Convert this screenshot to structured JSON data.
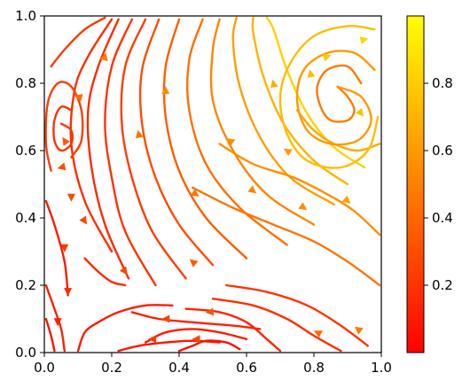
{
  "chart_data": {
    "type": "streamplot",
    "title": "",
    "xlabel": "",
    "ylabel": "",
    "xlim": [
      0,
      1
    ],
    "ylim": [
      0,
      1
    ],
    "x_ticks": [
      "0.0",
      "0.2",
      "0.4",
      "0.6",
      "0.8",
      "1.0"
    ],
    "y_ticks": [
      "0.0",
      "0.2",
      "0.4",
      "0.6",
      "0.8",
      "1.0"
    ],
    "grid": false,
    "colormap": "autumn",
    "colormap_stops": [
      "#ff0000",
      "#ff8000",
      "#ffff00"
    ],
    "colorbar": {
      "range": [
        0,
        1
      ],
      "ticks": [
        "0.2",
        "0.4",
        "0.6",
        "0.8"
      ]
    },
    "features": {
      "vortices": [
        {
          "x": 0.05,
          "y": 0.68,
          "label": "small vortex near left edge"
        },
        {
          "x": 0.87,
          "y": 0.79,
          "label": "vortex upper right"
        }
      ],
      "max_magnitude_region": {
        "x": 0.72,
        "y": 0.72
      }
    },
    "streamlines": [
      {
        "color_value": 0.22,
        "points": [
          [
            0.02,
            0.85
          ],
          [
            0.06,
            0.9
          ],
          [
            0.12,
            0.96
          ],
          [
            0.18,
            0.995
          ]
        ]
      },
      {
        "color_value": 0.18,
        "points": [
          [
            0.2,
            0.3
          ],
          [
            0.12,
            0.45
          ],
          [
            0.08,
            0.62
          ],
          [
            0.09,
            0.78
          ],
          [
            0.13,
            0.88
          ],
          [
            0.2,
            0.99
          ]
        ]
      },
      {
        "color_value": 0.16,
        "points": [
          [
            0.25,
            0.22
          ],
          [
            0.18,
            0.38
          ],
          [
            0.14,
            0.55
          ],
          [
            0.13,
            0.72
          ],
          [
            0.16,
            0.85
          ],
          [
            0.22,
            0.99
          ]
        ]
      },
      {
        "color_value": 0.2,
        "points": [
          [
            0.33,
            0.2
          ],
          [
            0.24,
            0.36
          ],
          [
            0.2,
            0.52
          ],
          [
            0.18,
            0.68
          ],
          [
            0.2,
            0.85
          ],
          [
            0.26,
            0.99
          ]
        ]
      },
      {
        "color_value": 0.24,
        "points": [
          [
            0.42,
            0.22
          ],
          [
            0.32,
            0.36
          ],
          [
            0.26,
            0.52
          ],
          [
            0.23,
            0.68
          ],
          [
            0.24,
            0.85
          ],
          [
            0.3,
            0.99
          ]
        ]
      },
      {
        "color_value": 0.3,
        "points": [
          [
            0.5,
            0.26
          ],
          [
            0.4,
            0.38
          ],
          [
            0.33,
            0.52
          ],
          [
            0.29,
            0.68
          ],
          [
            0.29,
            0.84
          ],
          [
            0.34,
            0.99
          ]
        ]
      },
      {
        "color_value": 0.36,
        "points": [
          [
            0.6,
            0.28
          ],
          [
            0.48,
            0.4
          ],
          [
            0.4,
            0.54
          ],
          [
            0.36,
            0.7
          ],
          [
            0.36,
            0.85
          ],
          [
            0.4,
            0.99
          ]
        ]
      },
      {
        "color_value": 0.44,
        "points": [
          [
            0.72,
            0.32
          ],
          [
            0.58,
            0.43
          ],
          [
            0.48,
            0.56
          ],
          [
            0.43,
            0.72
          ],
          [
            0.43,
            0.87
          ],
          [
            0.47,
            0.99
          ]
        ]
      },
      {
        "color_value": 0.52,
        "points": [
          [
            0.8,
            0.38
          ],
          [
            0.66,
            0.47
          ],
          [
            0.56,
            0.6
          ],
          [
            0.5,
            0.75
          ],
          [
            0.5,
            0.9
          ],
          [
            0.52,
            0.99
          ]
        ]
      },
      {
        "color_value": 0.62,
        "points": [
          [
            0.86,
            0.44
          ],
          [
            0.73,
            0.52
          ],
          [
            0.64,
            0.64
          ],
          [
            0.58,
            0.79
          ],
          [
            0.56,
            0.93
          ],
          [
            0.57,
            0.995
          ]
        ]
      },
      {
        "color_value": 0.7,
        "points": [
          [
            0.9,
            0.5
          ],
          [
            0.8,
            0.57
          ],
          [
            0.71,
            0.68
          ],
          [
            0.65,
            0.82
          ],
          [
            0.62,
            0.95
          ],
          [
            0.62,
            0.995
          ]
        ]
      },
      {
        "color_value": 0.82,
        "points": [
          [
            0.95,
            0.55
          ],
          [
            0.86,
            0.61
          ],
          [
            0.78,
            0.71
          ],
          [
            0.72,
            0.84
          ],
          [
            0.68,
            0.96
          ],
          [
            0.66,
            0.995
          ]
        ]
      },
      {
        "color_value": 0.56,
        "points": [
          [
            0.995,
            0.35
          ],
          [
            0.92,
            0.42
          ],
          [
            0.84,
            0.47
          ],
          [
            0.74,
            0.52
          ],
          [
            0.62,
            0.56
          ],
          [
            0.52,
            0.62
          ]
        ]
      },
      {
        "color_value": 0.46,
        "points": [
          [
            0.995,
            0.2
          ],
          [
            0.9,
            0.27
          ],
          [
            0.8,
            0.33
          ],
          [
            0.68,
            0.38
          ],
          [
            0.56,
            0.43
          ],
          [
            0.44,
            0.49
          ]
        ]
      },
      {
        "color_value": 0.66,
        "points": [
          [
            0.995,
            0.62
          ],
          [
            0.93,
            0.6
          ],
          [
            0.86,
            0.62
          ],
          [
            0.8,
            0.66
          ],
          [
            0.75,
            0.72
          ]
        ]
      },
      {
        "color_value": 0.48,
        "points": [
          [
            0.87,
            0.79
          ],
          [
            0.9,
            0.76
          ],
          [
            0.92,
            0.72
          ],
          [
            0.9,
            0.69
          ],
          [
            0.85,
            0.69
          ],
          [
            0.82,
            0.73
          ],
          [
            0.81,
            0.79
          ],
          [
            0.84,
            0.84
          ],
          [
            0.9,
            0.85
          ],
          [
            0.94,
            0.8
          ]
        ]
      },
      {
        "color_value": 0.6,
        "points": [
          [
            0.87,
            0.79
          ],
          [
            0.94,
            0.76
          ],
          [
            0.97,
            0.69
          ],
          [
            0.93,
            0.63
          ],
          [
            0.85,
            0.62
          ],
          [
            0.78,
            0.66
          ],
          [
            0.75,
            0.75
          ],
          [
            0.77,
            0.84
          ],
          [
            0.84,
            0.89
          ],
          [
            0.92,
            0.89
          ],
          [
            0.98,
            0.84
          ]
        ]
      },
      {
        "color_value": 0.74,
        "points": [
          [
            0.99,
            0.7
          ],
          [
            0.96,
            0.6
          ],
          [
            0.88,
            0.55
          ],
          [
            0.78,
            0.57
          ],
          [
            0.72,
            0.65
          ],
          [
            0.7,
            0.76
          ],
          [
            0.73,
            0.86
          ],
          [
            0.8,
            0.94
          ],
          [
            0.9,
            0.97
          ],
          [
            0.98,
            0.96
          ]
        ]
      },
      {
        "color_value": 0.2,
        "points": [
          [
            0.05,
            0.68
          ],
          [
            0.08,
            0.66
          ],
          [
            0.08,
            0.62
          ],
          [
            0.05,
            0.6
          ],
          [
            0.03,
            0.63
          ],
          [
            0.03,
            0.69
          ],
          [
            0.05,
            0.73
          ],
          [
            0.08,
            0.72
          ]
        ]
      },
      {
        "color_value": 0.24,
        "points": [
          [
            0.08,
            0.58
          ],
          [
            0.11,
            0.63
          ],
          [
            0.11,
            0.72
          ],
          [
            0.08,
            0.79
          ],
          [
            0.04,
            0.8
          ],
          [
            0.01,
            0.74
          ],
          [
            0.005,
            0.62
          ],
          [
            0.02,
            0.54
          ]
        ]
      },
      {
        "color_value": 0.1,
        "points": [
          [
            0.005,
            0.45
          ],
          [
            0.03,
            0.38
          ],
          [
            0.06,
            0.27
          ],
          [
            0.07,
            0.17
          ]
        ]
      },
      {
        "color_value": 0.12,
        "points": [
          [
            0.005,
            0.2
          ],
          [
            0.03,
            0.13
          ],
          [
            0.05,
            0.07
          ],
          [
            0.06,
            0.005
          ]
        ]
      },
      {
        "color_value": 0.08,
        "points": [
          [
            0.005,
            0.1
          ],
          [
            0.02,
            0.05
          ],
          [
            0.03,
            0.005
          ]
        ]
      },
      {
        "color_value": 0.14,
        "points": [
          [
            0.12,
            0.28
          ],
          [
            0.16,
            0.24
          ],
          [
            0.2,
            0.21
          ],
          [
            0.24,
            0.2
          ]
        ]
      },
      {
        "color_value": 0.1,
        "points": [
          [
            0.1,
            0.005
          ],
          [
            0.12,
            0.06
          ],
          [
            0.16,
            0.09
          ],
          [
            0.22,
            0.12
          ],
          [
            0.3,
            0.14
          ],
          [
            0.38,
            0.14
          ]
        ]
      },
      {
        "color_value": 0.12,
        "points": [
          [
            0.26,
            0.12
          ],
          [
            0.34,
            0.1
          ],
          [
            0.44,
            0.09
          ],
          [
            0.56,
            0.08
          ],
          [
            0.64,
            0.07
          ]
        ]
      },
      {
        "color_value": 0.1,
        "points": [
          [
            0.3,
            0.03
          ],
          [
            0.36,
            0.06
          ],
          [
            0.44,
            0.07
          ],
          [
            0.52,
            0.06
          ],
          [
            0.6,
            0.04
          ]
        ]
      },
      {
        "color_value": 0.08,
        "points": [
          [
            0.22,
            0.005
          ],
          [
            0.28,
            0.02
          ],
          [
            0.36,
            0.03
          ],
          [
            0.44,
            0.035
          ],
          [
            0.52,
            0.03
          ]
        ]
      },
      {
        "color_value": 0.06,
        "points": [
          [
            0.4,
            0.005
          ],
          [
            0.44,
            0.02
          ],
          [
            0.48,
            0.035
          ],
          [
            0.54,
            0.03
          ],
          [
            0.58,
            0.01
          ]
        ]
      },
      {
        "color_value": 0.14,
        "points": [
          [
            0.7,
            0.005
          ],
          [
            0.66,
            0.04
          ],
          [
            0.6,
            0.09
          ],
          [
            0.52,
            0.12
          ],
          [
            0.42,
            0.13
          ]
        ]
      },
      {
        "color_value": 0.18,
        "points": [
          [
            0.88,
            0.005
          ],
          [
            0.8,
            0.05
          ],
          [
            0.72,
            0.1
          ],
          [
            0.62,
            0.14
          ],
          [
            0.5,
            0.16
          ]
        ]
      },
      {
        "color_value": 0.2,
        "points": [
          [
            0.96,
            0.02
          ],
          [
            0.88,
            0.08
          ],
          [
            0.78,
            0.14
          ],
          [
            0.66,
            0.18
          ],
          [
            0.54,
            0.2
          ]
        ]
      }
    ],
    "arrows": [
      {
        "x": 0.18,
        "y": 0.88,
        "dx": 0.02,
        "dy": 0.08
      },
      {
        "x": 0.28,
        "y": 0.65,
        "dx": -0.02,
        "dy": 0.1
      },
      {
        "x": 0.36,
        "y": 0.78,
        "dx": 0.0,
        "dy": 0.1
      },
      {
        "x": 0.45,
        "y": 0.47,
        "dx": 0.06,
        "dy": -0.04
      },
      {
        "x": 0.62,
        "y": 0.48,
        "dx": 0.06,
        "dy": -0.05
      },
      {
        "x": 0.77,
        "y": 0.43,
        "dx": 0.07,
        "dy": -0.05
      },
      {
        "x": 0.9,
        "y": 0.45,
        "dx": 0.06,
        "dy": -0.05
      },
      {
        "x": 0.55,
        "y": 0.63,
        "dx": -0.07,
        "dy": 0.05
      },
      {
        "x": 0.72,
        "y": 0.6,
        "dx": -0.08,
        "dy": 0.05
      },
      {
        "x": 0.68,
        "y": 0.8,
        "dx": -0.02,
        "dy": 0.1
      },
      {
        "x": 0.79,
        "y": 0.83,
        "dx": -0.02,
        "dy": 0.1
      },
      {
        "x": 0.84,
        "y": 0.88,
        "dx": 0.08,
        "dy": 0.03
      },
      {
        "x": 0.94,
        "y": 0.71,
        "dx": 0.04,
        "dy": -0.05
      },
      {
        "x": 0.95,
        "y": 0.93,
        "dx": 0.08,
        "dy": 0.02
      },
      {
        "x": 0.06,
        "y": 0.63,
        "dx": -0.04,
        "dy": 0.06
      },
      {
        "x": 0.1,
        "y": 0.76,
        "dx": -0.07,
        "dy": 0.02
      },
      {
        "x": 0.05,
        "y": 0.55,
        "dx": -0.08,
        "dy": -0.02
      },
      {
        "x": 0.08,
        "y": 0.46,
        "dx": 0.0,
        "dy": -0.1
      },
      {
        "x": 0.06,
        "y": 0.31,
        "dx": 0.0,
        "dy": -0.1
      },
      {
        "x": 0.07,
        "y": 0.18,
        "dx": 0.0,
        "dy": -0.1
      },
      {
        "x": 0.04,
        "y": 0.09,
        "dx": 0.0,
        "dy": -0.1
      },
      {
        "x": 0.12,
        "y": 0.39,
        "dx": 0.04,
        "dy": -0.06
      },
      {
        "x": 0.24,
        "y": 0.24,
        "dx": 0.05,
        "dy": -0.07
      },
      {
        "x": 0.44,
        "y": 0.27,
        "dx": -0.07,
        "dy": 0.06
      },
      {
        "x": 0.36,
        "y": 0.1,
        "dx": -0.1,
        "dy": 0.0
      },
      {
        "x": 0.32,
        "y": 0.04,
        "dx": -0.1,
        "dy": 0.0
      },
      {
        "x": 0.45,
        "y": 0.04,
        "dx": -0.1,
        "dy": 0.0
      },
      {
        "x": 0.49,
        "y": 0.12,
        "dx": -0.1,
        "dy": -0.01
      },
      {
        "x": 0.81,
        "y": 0.06,
        "dx": -0.08,
        "dy": 0.04
      },
      {
        "x": 0.93,
        "y": 0.07,
        "dx": -0.08,
        "dy": 0.06
      }
    ]
  }
}
